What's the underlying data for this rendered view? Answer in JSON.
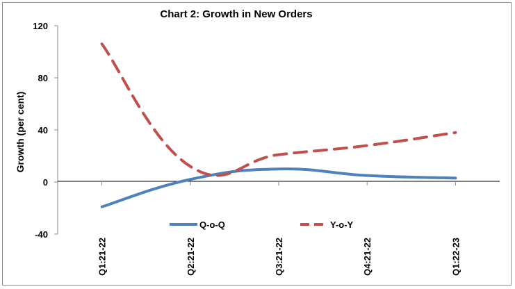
{
  "chart_data": {
    "type": "line",
    "title": "Chart 2: Growth in New Orders",
    "ylabel": "Growth (per cent)",
    "xlabel": "",
    "categories": [
      "Q1:21-22",
      "Q2:21-22",
      "Q3:21-22",
      "Q4:21-22",
      "Q1:22-23"
    ],
    "ylim": [
      -40,
      120
    ],
    "yticks": [
      -40,
      0,
      40,
      80,
      120
    ],
    "ytick_labels": [
      "-40",
      "0",
      "40",
      "80",
      "120"
    ],
    "grid": false,
    "legend_position": "bottom-center",
    "series": [
      {
        "name": "Q-o-Q",
        "values": [
          -19,
          2,
          10,
          5,
          3
        ],
        "color": "#4F81BD",
        "style": "solid"
      },
      {
        "name": "Y-o-Y",
        "values": [
          106,
          12,
          21,
          28,
          38
        ],
        "color": "#C0504D",
        "style": "dashed"
      }
    ]
  }
}
